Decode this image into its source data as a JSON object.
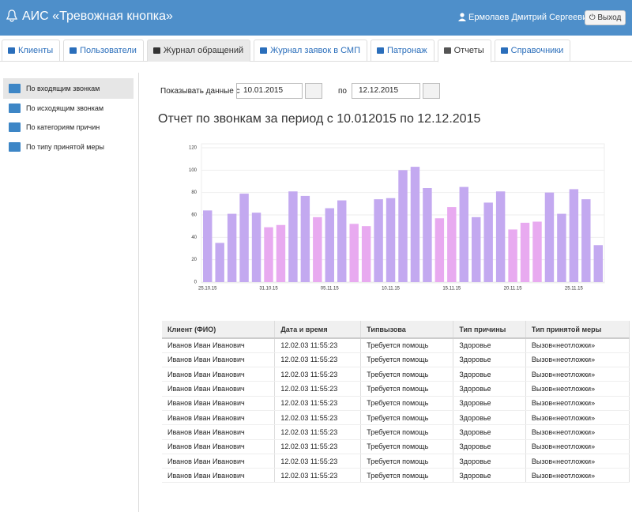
{
  "header": {
    "title": "АИС «Тревожная кнопка»",
    "user": "Ермолаев Дмитрий Сергеевич",
    "logout": "Выход"
  },
  "tabs": [
    "Клиенты",
    "Пользователи",
    "Журнал обращений",
    "Журнал заявок в СМП",
    "Патронаж",
    "Отчеты",
    "Справочники"
  ],
  "sidebar": [
    "По входящим звонкам",
    "По исходящим звонкам",
    "По категориям причин",
    "По типу принятой меры"
  ],
  "filter": {
    "label_from": "Показывать данные с",
    "date_from": "10.01.2015",
    "label_to": "по",
    "date_to": "12.12.2015"
  },
  "report_title": "Отчет по звонкам за период с 10.012015 по 12.12.2015",
  "chart": {
    "type": "bar",
    "categories": [
      "25.10.15",
      null,
      null,
      null,
      null,
      "31.10.15",
      null,
      null,
      null,
      null,
      "05.11.15",
      null,
      null,
      null,
      null,
      "10.11.15",
      null,
      null,
      null,
      null,
      "15.11.15",
      null,
      null,
      null,
      null,
      "20.11.15",
      null,
      null,
      null,
      null,
      "25.11.15",
      null,
      null
    ],
    "values": [
      64,
      35,
      61,
      79,
      62,
      49,
      51,
      81,
      77,
      58,
      66,
      73,
      52,
      50,
      74,
      75,
      100,
      103,
      84,
      57,
      67,
      85,
      58,
      71,
      81,
      47,
      53,
      54,
      80,
      61,
      83,
      74,
      33
    ],
    "colors": [
      "#c3a9f0",
      "#c3a9f0",
      "#c3a9f0",
      "#c3a9f0",
      "#c3a9f0",
      "#e8aaf0",
      "#e8aaf0",
      "#c3a9f0",
      "#c3a9f0",
      "#e8aaf0",
      "#c3a9f0",
      "#c3a9f0",
      "#e8aaf0",
      "#e8aaf0",
      "#c3a9f0",
      "#c3a9f0",
      "#c3a9f0",
      "#c3a9f0",
      "#c3a9f0",
      "#e8aaf0",
      "#e8aaf0",
      "#c3a9f0",
      "#c3a9f0",
      "#c3a9f0",
      "#c3a9f0",
      "#e8aaf0",
      "#e8aaf0",
      "#e8aaf0",
      "#c3a9f0",
      "#c3a9f0",
      "#c3a9f0",
      "#c3a9f0",
      "#c3a9f0"
    ],
    "tick_label_colors": [
      "#333333",
      null,
      null,
      null,
      null,
      "#d9302c",
      null,
      null,
      null,
      null,
      "#333333",
      null,
      null,
      null,
      null,
      "#333333",
      null,
      null,
      null,
      null,
      "#d9302c",
      null,
      null,
      null,
      null,
      "#333333",
      null,
      null,
      null,
      null,
      "#333333",
      null,
      null
    ],
    "ylim": [
      0,
      120
    ],
    "yticks": [
      0,
      20,
      40,
      60,
      80,
      100,
      120
    ],
    "grid": true
  },
  "table": {
    "columns": [
      "Клиент (ФИО)",
      "Дата и время",
      "Типвызова",
      "Тип причины",
      "Тип принятой меры"
    ],
    "rows": [
      [
        "Иванов Иван Иванович",
        "12.02.03 11:55:23",
        "Требуется помощь",
        "Здоровье",
        "Вызов«неотложки»"
      ],
      [
        "Иванов Иван Иванович",
        "12.02.03 11:55:23",
        "Требуется помощь",
        "Здоровье",
        "Вызов«неотложки»"
      ],
      [
        "Иванов Иван Иванович",
        "12.02.03 11:55:23",
        "Требуется помощь",
        "Здоровье",
        "Вызов«неотложки»"
      ],
      [
        "Иванов Иван Иванович",
        "12.02.03 11:55:23",
        "Требуется помощь",
        "Здоровье",
        "Вызов«неотложки»"
      ],
      [
        "Иванов Иван Иванович",
        "12.02.03 11:55:23",
        "Требуется помощь",
        "Здоровье",
        "Вызов«неотложки»"
      ],
      [
        "Иванов Иван Иванович",
        "12.02.03 11:55:23",
        "Требуется помощь",
        "Здоровье",
        "Вызов«неотложки»"
      ],
      [
        "Иванов Иван Иванович",
        "12.02.03 11:55:23",
        "Требуется помощь",
        "Здоровье",
        "Вызов«неотложки»"
      ],
      [
        "Иванов Иван Иванович",
        "12.02.03 11:55:23",
        "Требуется помощь",
        "Здоровье",
        "Вызов«неотложки»"
      ],
      [
        "Иванов Иван Иванович",
        "12.02.03 11:55:23",
        "Требуется помощь",
        "Здоровье",
        "Вызов«неотложки»"
      ],
      [
        "Иванов Иван Иванович",
        "12.02.03 11:55:23",
        "Требуется помощь",
        "Здоровье",
        "Вызов«неотложки»"
      ]
    ]
  }
}
